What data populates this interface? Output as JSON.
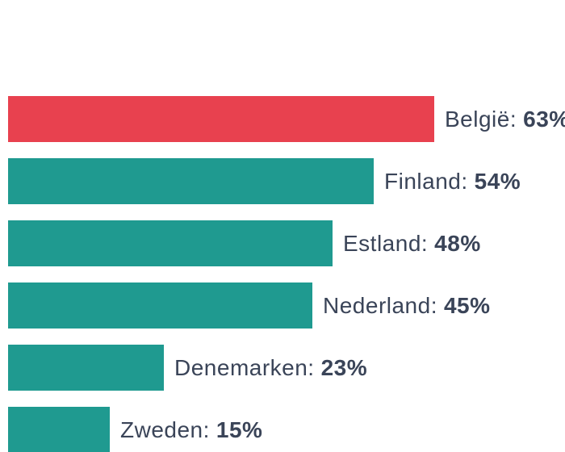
{
  "chart_data": {
    "type": "bar",
    "orientation": "horizontal",
    "title": "",
    "unit": "%",
    "categories": [
      "België",
      "Finland",
      "Estland",
      "Nederland",
      "Denemarken",
      "Zweden"
    ],
    "values": [
      63,
      54,
      48,
      45,
      23,
      15
    ],
    "value_range": [
      0,
      100
    ],
    "axis_visible": false,
    "gridlines": false,
    "legend": "none",
    "colors": {
      "highlight_bar": "#e8414f",
      "default_bar": "#1f9a90",
      "label_text": "#3a4458",
      "background": "#ffffff"
    },
    "rows": [
      {
        "label": "België:",
        "value_label": "63%",
        "value": 63,
        "color": "#e8414f",
        "highlighted": true
      },
      {
        "label": "Finland:",
        "value_label": "54%",
        "value": 54,
        "color": "#1f9a90",
        "highlighted": false
      },
      {
        "label": "Estland:",
        "value_label": "48%",
        "value": 48,
        "color": "#1f9a90",
        "highlighted": false
      },
      {
        "label": "Nederland:",
        "value_label": "45%",
        "value": 45,
        "color": "#1f9a90",
        "highlighted": false
      },
      {
        "label": "Denemarken:",
        "value_label": "23%",
        "value": 23,
        "color": "#1f9a90",
        "highlighted": false
      },
      {
        "label": "Zweden:",
        "value_label": "15%",
        "value": 15,
        "color": "#1f9a90",
        "highlighted": false
      }
    ]
  }
}
